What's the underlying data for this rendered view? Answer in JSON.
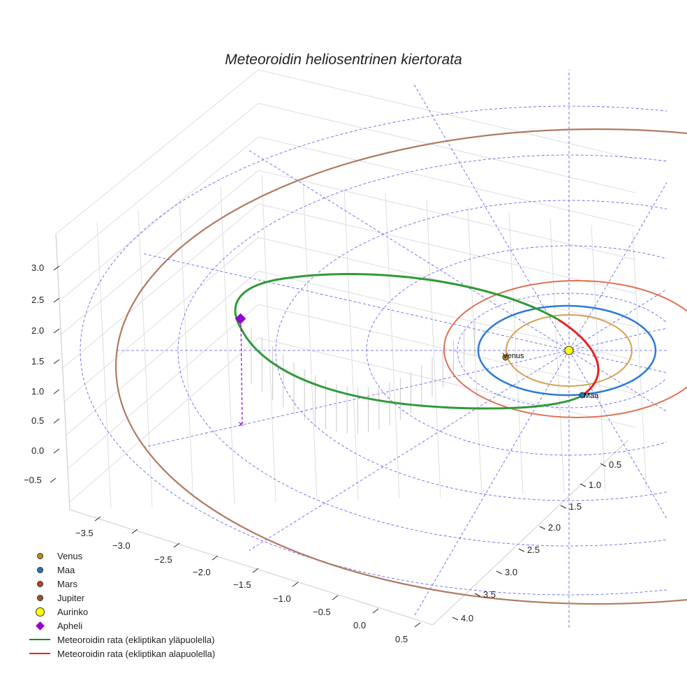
{
  "chart_data": {
    "type": "line",
    "projection": "3d",
    "title": "Meteoroidin heliosentrinen kiertorata",
    "x_ticks": [
      "−3.5",
      "−3.0",
      "−2.5",
      "−2.0",
      "−1.5",
      "−1.0",
      "−0.5",
      "0.0",
      "0.5"
    ],
    "y_ticks": [
      "0.5",
      "1.0",
      "1.5",
      "2.0",
      "2.5",
      "3.0",
      "3.5",
      "4.0"
    ],
    "z_ticks": [
      "3.0",
      "2.5",
      "2.0",
      "1.5",
      "1.0",
      "0.5",
      "0.0",
      "−0.5"
    ],
    "xlim": [
      -3.7,
      0.6
    ],
    "ylim": [
      0.3,
      4.2
    ],
    "zlim": [
      -0.7,
      3.2
    ],
    "orbits": [
      {
        "name": "Venus",
        "radius_au": 0.72,
        "color": "#d4a04c"
      },
      {
        "name": "Maa",
        "radius_au": 1.0,
        "color": "#2b7bd6"
      },
      {
        "name": "Mars",
        "radius_au": 1.52,
        "color": "#e07050"
      },
      {
        "name": "Jupiter",
        "radius_au": 5.2,
        "color": "#b07a60"
      }
    ],
    "point_labels": {
      "venus": "Venus",
      "earth": "Maa"
    },
    "aphelion": {
      "z_au": 2.0
    },
    "legend": {
      "placement": "bottom-left",
      "items": [
        {
          "label": "Venus",
          "color": "#c8861a",
          "marker": "circle"
        },
        {
          "label": "Maa",
          "color": "#1f77b4",
          "marker": "circle"
        },
        {
          "label": "Mars",
          "color": "#c1440e",
          "marker": "circle"
        },
        {
          "label": "Jupiter",
          "color": "#a0522d",
          "marker": "circle"
        },
        {
          "label": "Aurinko",
          "color": "#ffff00",
          "marker": "circle-large"
        },
        {
          "label": "Apheli",
          "color": "#9400d3",
          "marker": "diamond"
        },
        {
          "label": "Meteoroidin rata (ekliptikan yläpuolella)",
          "color": "#1a8a1a",
          "marker": "line"
        },
        {
          "label": "Meteoroidin rata (ekliptikan alapuolella)",
          "color": "#e82020",
          "marker": "line"
        }
      ]
    }
  }
}
